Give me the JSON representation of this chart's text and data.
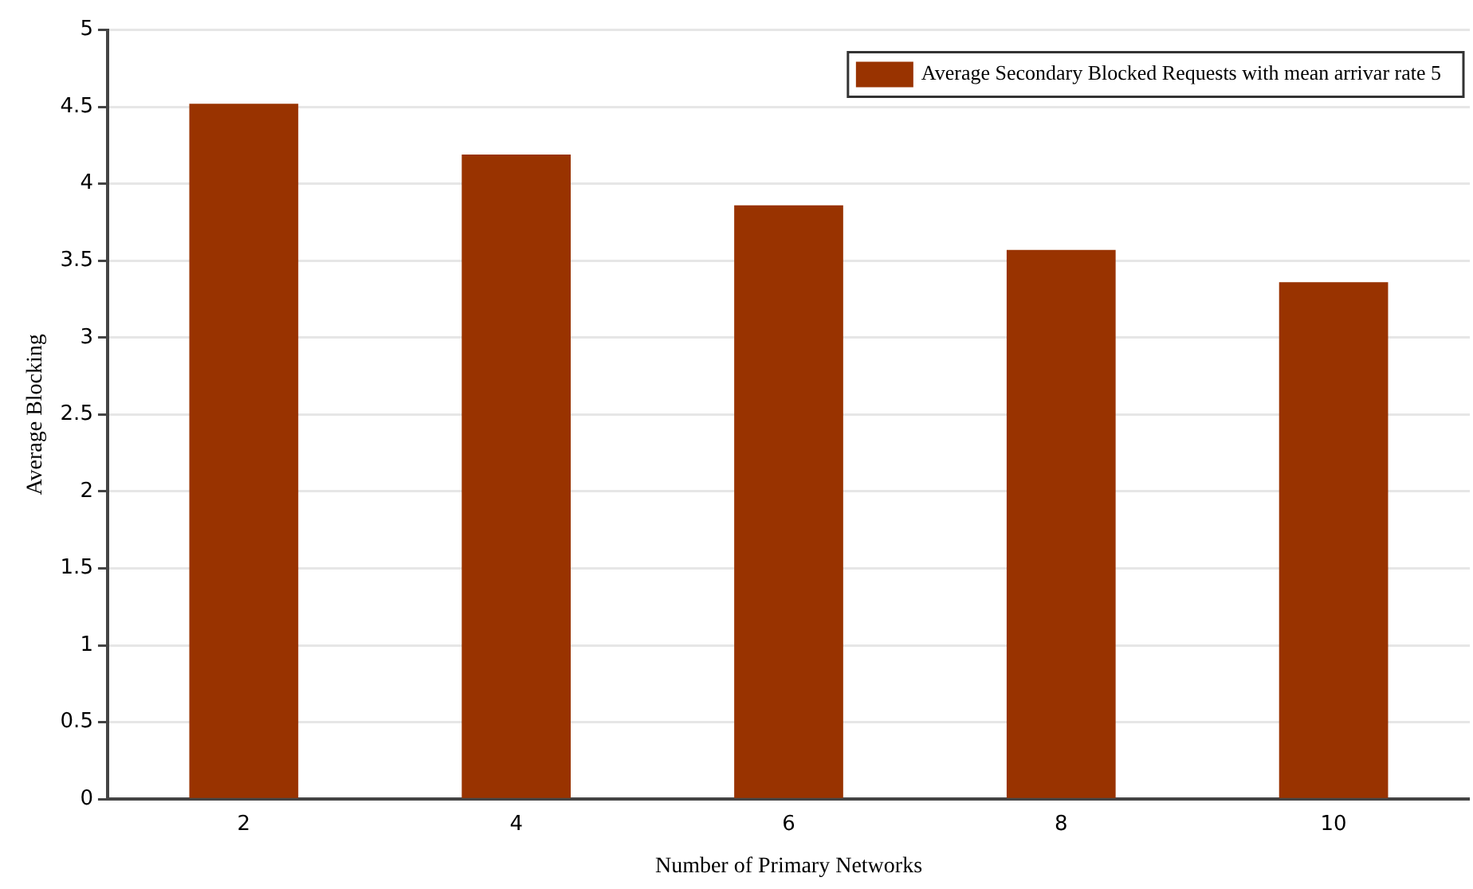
{
  "chart_data": {
    "type": "bar",
    "xlabel": "Number of Primary Networks",
    "ylabel": "Average Blocking",
    "categories": [
      "2",
      "4",
      "6",
      "8",
      "10"
    ],
    "series": [
      {
        "name": "Average Secondary Blocked Requests with mean arrivar rate 5",
        "color": "#993300",
        "values": [
          4.52,
          4.19,
          3.86,
          3.57,
          3.36
        ]
      }
    ],
    "ylim": [
      0,
      5
    ],
    "yticks": [
      0,
      0.5,
      1,
      1.5,
      2,
      2.5,
      3,
      3.5,
      4,
      4.5,
      5
    ],
    "grid": "y",
    "legend": "top right"
  }
}
